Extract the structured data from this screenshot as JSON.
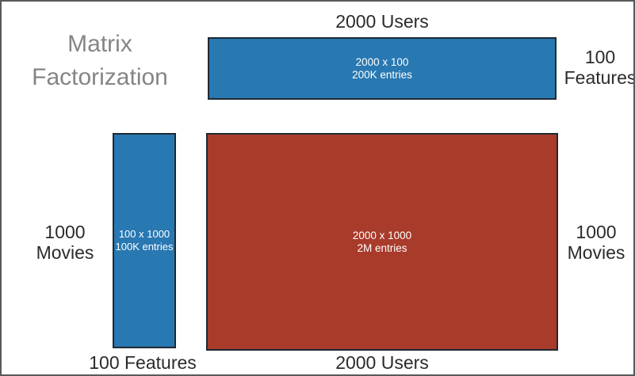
{
  "colors": {
    "matrix-blue": "#2878B2",
    "matrix-red": "#A93B2B",
    "rect-border": "#1F2933",
    "frame-border": "#58595B",
    "title-gray": "#838587",
    "label-dark": "#2B2B2E",
    "inner-text": "#FFFFFF"
  },
  "title": "Matrix Factorization",
  "user_feature_matrix": {
    "top_label": "2000 Users",
    "right_label": "100 Features",
    "dims": "2000 x 100",
    "entries": "200K entries"
  },
  "movie_feature_matrix": {
    "left_label": "1000 Movies",
    "bottom_label": "100 Features",
    "dims": "100 x 1000",
    "entries": "100K entries"
  },
  "ratings_matrix": {
    "bottom_label": "2000 Users",
    "right_label": "1000 Movies",
    "dims": "2000 x 1000",
    "entries": "2M entries"
  }
}
